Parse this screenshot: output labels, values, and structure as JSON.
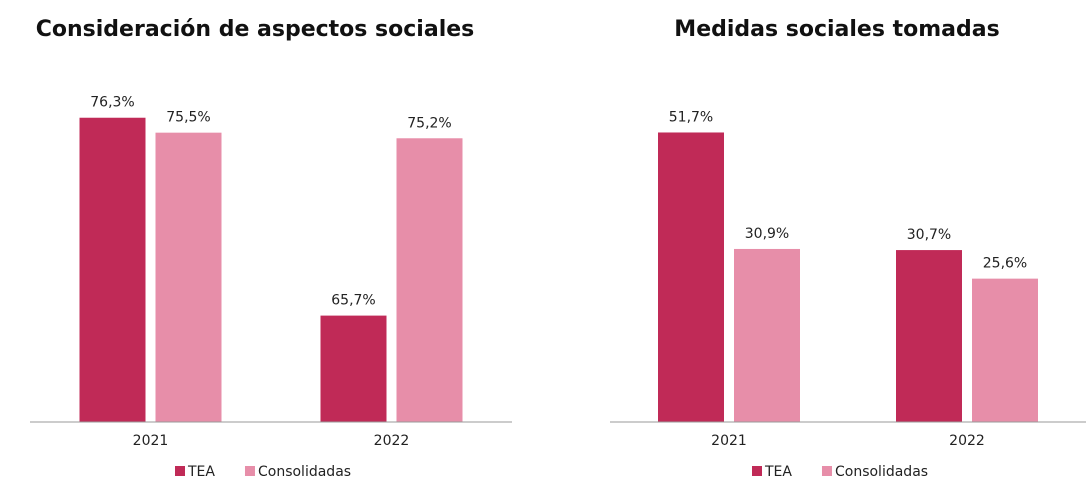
{
  "chart_data": [
    {
      "type": "bar",
      "title": "Consideración de aspectos sociales",
      "categories": [
        "2021",
        "2022"
      ],
      "series": [
        {
          "name": "TEA",
          "color": "#c02a57",
          "values": [
            76.3,
            65.7
          ],
          "value_labels": [
            "76,3%",
            "65,7%"
          ]
        },
        {
          "name": "Consolidadas",
          "color": "#e78ea9",
          "values": [
            75.5,
            75.2
          ],
          "value_labels": [
            "75,5%",
            "75,2%"
          ]
        }
      ],
      "ylim": [
        60,
        78
      ],
      "legend": "bottom"
    },
    {
      "type": "bar",
      "title": "Medidas sociales tomadas",
      "categories": [
        "2021",
        "2022"
      ],
      "series": [
        {
          "name": "TEA",
          "color": "#c02a57",
          "values": [
            51.7,
            30.7
          ],
          "value_labels": [
            "51,7%",
            "30,7%"
          ]
        },
        {
          "name": "Consolidadas",
          "color": "#e78ea9",
          "values": [
            30.9,
            25.6
          ],
          "value_labels": [
            "30,9%",
            "25,6%"
          ]
        }
      ],
      "ylim": [
        0,
        60
      ],
      "legend": "bottom"
    }
  ]
}
